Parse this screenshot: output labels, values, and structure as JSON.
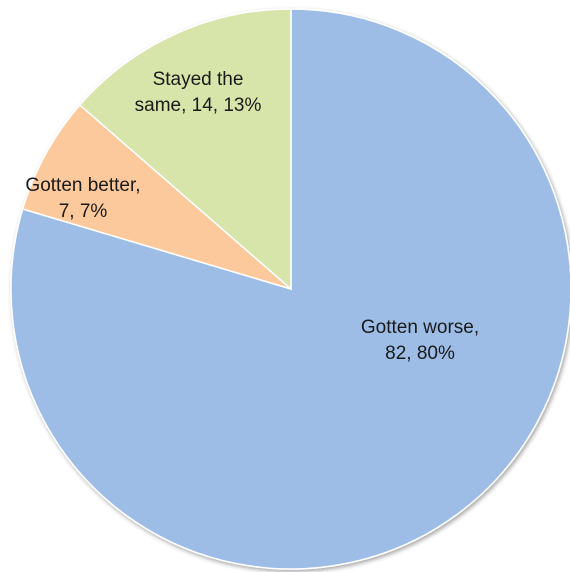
{
  "chart_data": {
    "type": "pie",
    "start_angle_deg": 0,
    "direction": "clockwise",
    "slices": [
      {
        "name": "Gotten worse",
        "value": 82,
        "percent": 80,
        "label_lines": [
          "Gotten worse,",
          "82, 80%"
        ],
        "color": "#9dbde6"
      },
      {
        "name": "Gotten better",
        "value": 7,
        "percent": 7,
        "label_lines": [
          "Gotten better,",
          "7, 7%"
        ],
        "color": "#fbc99c"
      },
      {
        "name": "Stayed the same",
        "value": 14,
        "percent": 13,
        "label_lines": [
          "Stayed the",
          "same, 14, 13%"
        ],
        "color": "#d7e4aa"
      }
    ]
  }
}
